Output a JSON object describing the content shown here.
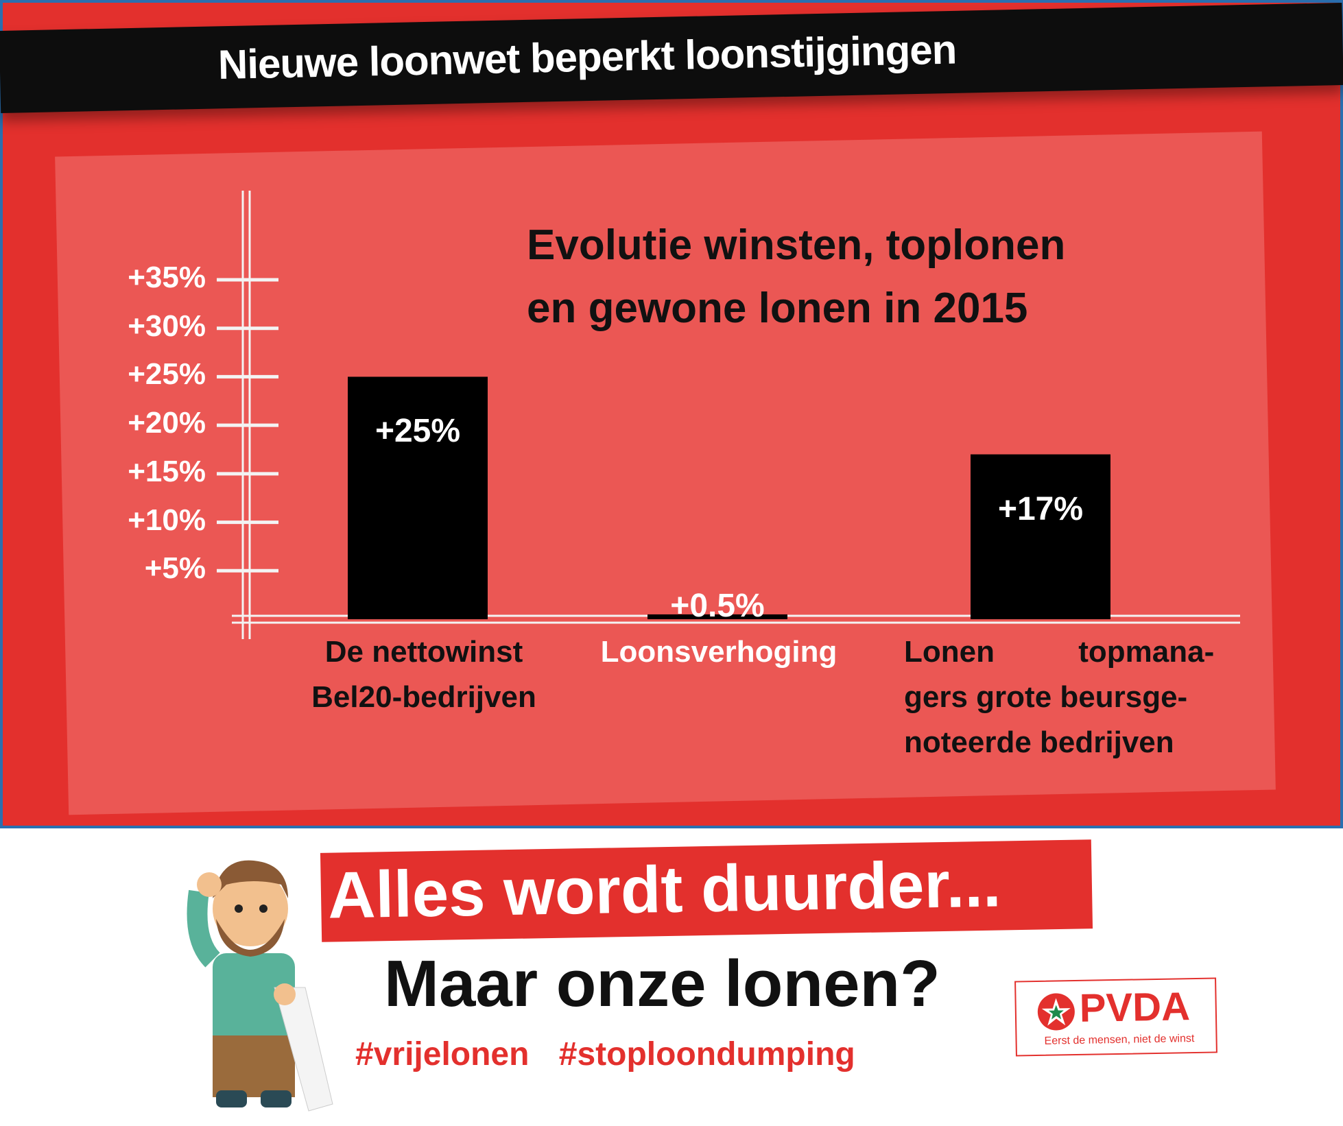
{
  "header": {
    "title": "Nieuwe loonwet beperkt loonstijgingen"
  },
  "chart_data": {
    "type": "bar",
    "title_lines": [
      "Evolutie winsten, toplonen",
      "en gewone lonen in 2015"
    ],
    "categories": [
      [
        "De nettowinst",
        "Bel20-bedrijven"
      ],
      [
        "Loonsverhoging"
      ],
      [
        "Lonen          topmana-",
        "gers grote beursge-",
        "noteerde bedrijven"
      ]
    ],
    "values": [
      25,
      0.5,
      17
    ],
    "value_labels": [
      "+25%",
      "+0.5%",
      "+17%"
    ],
    "y_ticks": [
      5,
      10,
      15,
      20,
      25,
      30,
      35
    ],
    "y_tick_labels": [
      "+5%",
      "+10%",
      "+15%",
      "+20%",
      "+25%",
      "+30%",
      "+35%"
    ],
    "ylim": [
      0,
      35
    ],
    "bar_color": "#000000",
    "grid": false
  },
  "slogan": {
    "line1": "Alles wordt duurder...",
    "line2": "Maar onze lonen?",
    "hashtags": [
      "#vrijelonen",
      "#stoploondumping"
    ]
  },
  "logo": {
    "name": "PVDA",
    "tagline": "Eerst de mensen, niet de winst"
  },
  "colors": {
    "red": "#e3302d",
    "panel": "#eb5754",
    "black": "#0d0d0d",
    "white": "#ffffff"
  }
}
